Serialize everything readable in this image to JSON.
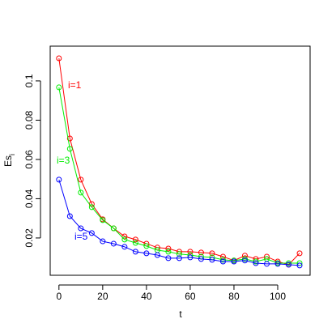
{
  "chart_data": {
    "type": "line",
    "xlabel": "t",
    "ylabel": "Es",
    "ylabel_subscript": "i",
    "x": [
      0,
      5,
      10,
      15,
      20,
      25,
      30,
      35,
      40,
      45,
      50,
      55,
      60,
      65,
      70,
      75,
      80,
      85,
      90,
      95,
      100,
      105,
      110
    ],
    "series": [
      {
        "name": "i=1",
        "color": "#ff0000",
        "values": [
          0.1115,
          0.0707,
          0.0497,
          0.0373,
          0.0295,
          0.0249,
          0.0208,
          0.0192,
          0.0171,
          0.0151,
          0.0146,
          0.013,
          0.013,
          0.0126,
          0.0122,
          0.0105,
          0.0085,
          0.011,
          0.0093,
          0.0105,
          0.008,
          0.0064,
          0.0122
        ]
      },
      {
        "name": "i=3",
        "color": "#00ee00",
        "values": [
          0.0967,
          0.0654,
          0.0431,
          0.0357,
          0.0291,
          0.0249,
          0.0192,
          0.0175,
          0.0159,
          0.0138,
          0.013,
          0.0118,
          0.0113,
          0.0105,
          0.0101,
          0.0089,
          0.0085,
          0.0093,
          0.008,
          0.0093,
          0.0072,
          0.0072,
          0.0072
        ]
      },
      {
        "name": "i=5",
        "color": "#0000ff",
        "values": [
          0.0497,
          0.0311,
          0.0249,
          0.0225,
          0.0183,
          0.0171,
          0.0155,
          0.013,
          0.0122,
          0.0113,
          0.0097,
          0.0097,
          0.0101,
          0.0093,
          0.0089,
          0.008,
          0.008,
          0.0085,
          0.0072,
          0.0068,
          0.0068,
          0.0064,
          0.006
        ]
      }
    ],
    "xlim": [
      -4,
      114.8
    ],
    "xticks": [
      0,
      20,
      40,
      60,
      80,
      100
    ],
    "ylim": [
      0.001,
      0.1177
    ],
    "yticks": [
      0.02,
      0.04,
      0.06,
      0.08,
      0.1
    ]
  }
}
